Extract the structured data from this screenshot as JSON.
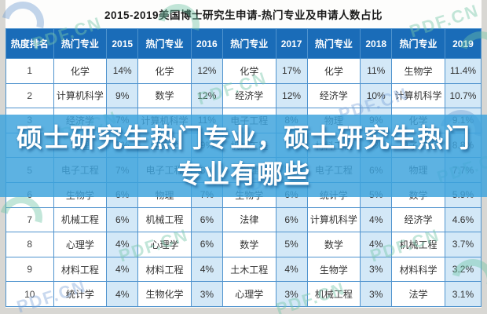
{
  "title": "2015-2019美国博士研究生申请-热门专业及申请人数占比",
  "overlay": {
    "line1": "硕士研究生热门专业，硕士研究生热门",
    "line2": "专业有哪些"
  },
  "watermark": {
    "text": "PDF.CN"
  },
  "colors": {
    "header_bg": "#1a6cb8",
    "value_cell_bg": "#d3e8f7",
    "banner_bg": "rgba(62,163,221,0.84)",
    "border": "#4f93ce",
    "banner_text": "#ffffff"
  },
  "chart_data": {
    "type": "table",
    "title": "2015-2019美国博士研究生申请-热门专业及申请人数占比",
    "columns": [
      "热度排名",
      "热门专业",
      "2015",
      "热门专业",
      "2016",
      "热门专业",
      "2017",
      "热门专业",
      "2018",
      "热门专业",
      "2019"
    ],
    "rows": [
      [
        "1",
        "化学",
        "14%",
        "化学",
        "12%",
        "化学",
        "17%",
        "化学",
        "11%",
        "生物学",
        "11.4%"
      ],
      [
        "2",
        "计算机科学",
        "9%",
        "数学",
        "12%",
        "经济学",
        "12%",
        "经济学",
        "10%",
        "计算机科学",
        "10.7%"
      ],
      [
        "3",
        "经济学",
        "7%",
        "计算机科学",
        "11%",
        "电子工程",
        "8%",
        "物理",
        "9%",
        "化学",
        "9.1%"
      ],
      [
        "4",
        "物理",
        "7%",
        "经济学",
        "9%",
        "机械工程",
        "7%",
        "材料工程",
        "9%",
        "电子工程",
        "8.8%"
      ],
      [
        "5",
        "电子工程",
        "7%",
        "电子工程",
        "8%",
        "物理",
        "7%",
        "电子工程",
        "6%",
        "物理",
        "7.7%"
      ],
      [
        "6",
        "生物学",
        "6%",
        "物理",
        "7%",
        "生物学",
        "6%",
        "统计学",
        "5%",
        "数学",
        "5.9%"
      ],
      [
        "7",
        "机械工程",
        "6%",
        "机械工程",
        "6%",
        "法律",
        "6%",
        "计算机科学",
        "4%",
        "经济学",
        "4.6%"
      ],
      [
        "8",
        "心理学",
        "4%",
        "心理学",
        "6%",
        "数学",
        "5%",
        "数学",
        "4%",
        "机械工程",
        "3.7%"
      ],
      [
        "9",
        "材料工程",
        "4%",
        "材料工程",
        "4%",
        "土木工程",
        "4%",
        "生物学",
        "3%",
        "材料科学",
        "3.2%"
      ],
      [
        "10",
        "统计学",
        "4%",
        "生物化学",
        "3%",
        "心理学",
        "3%",
        "机械工程",
        "3%",
        "法学",
        "3.1%"
      ]
    ]
  }
}
